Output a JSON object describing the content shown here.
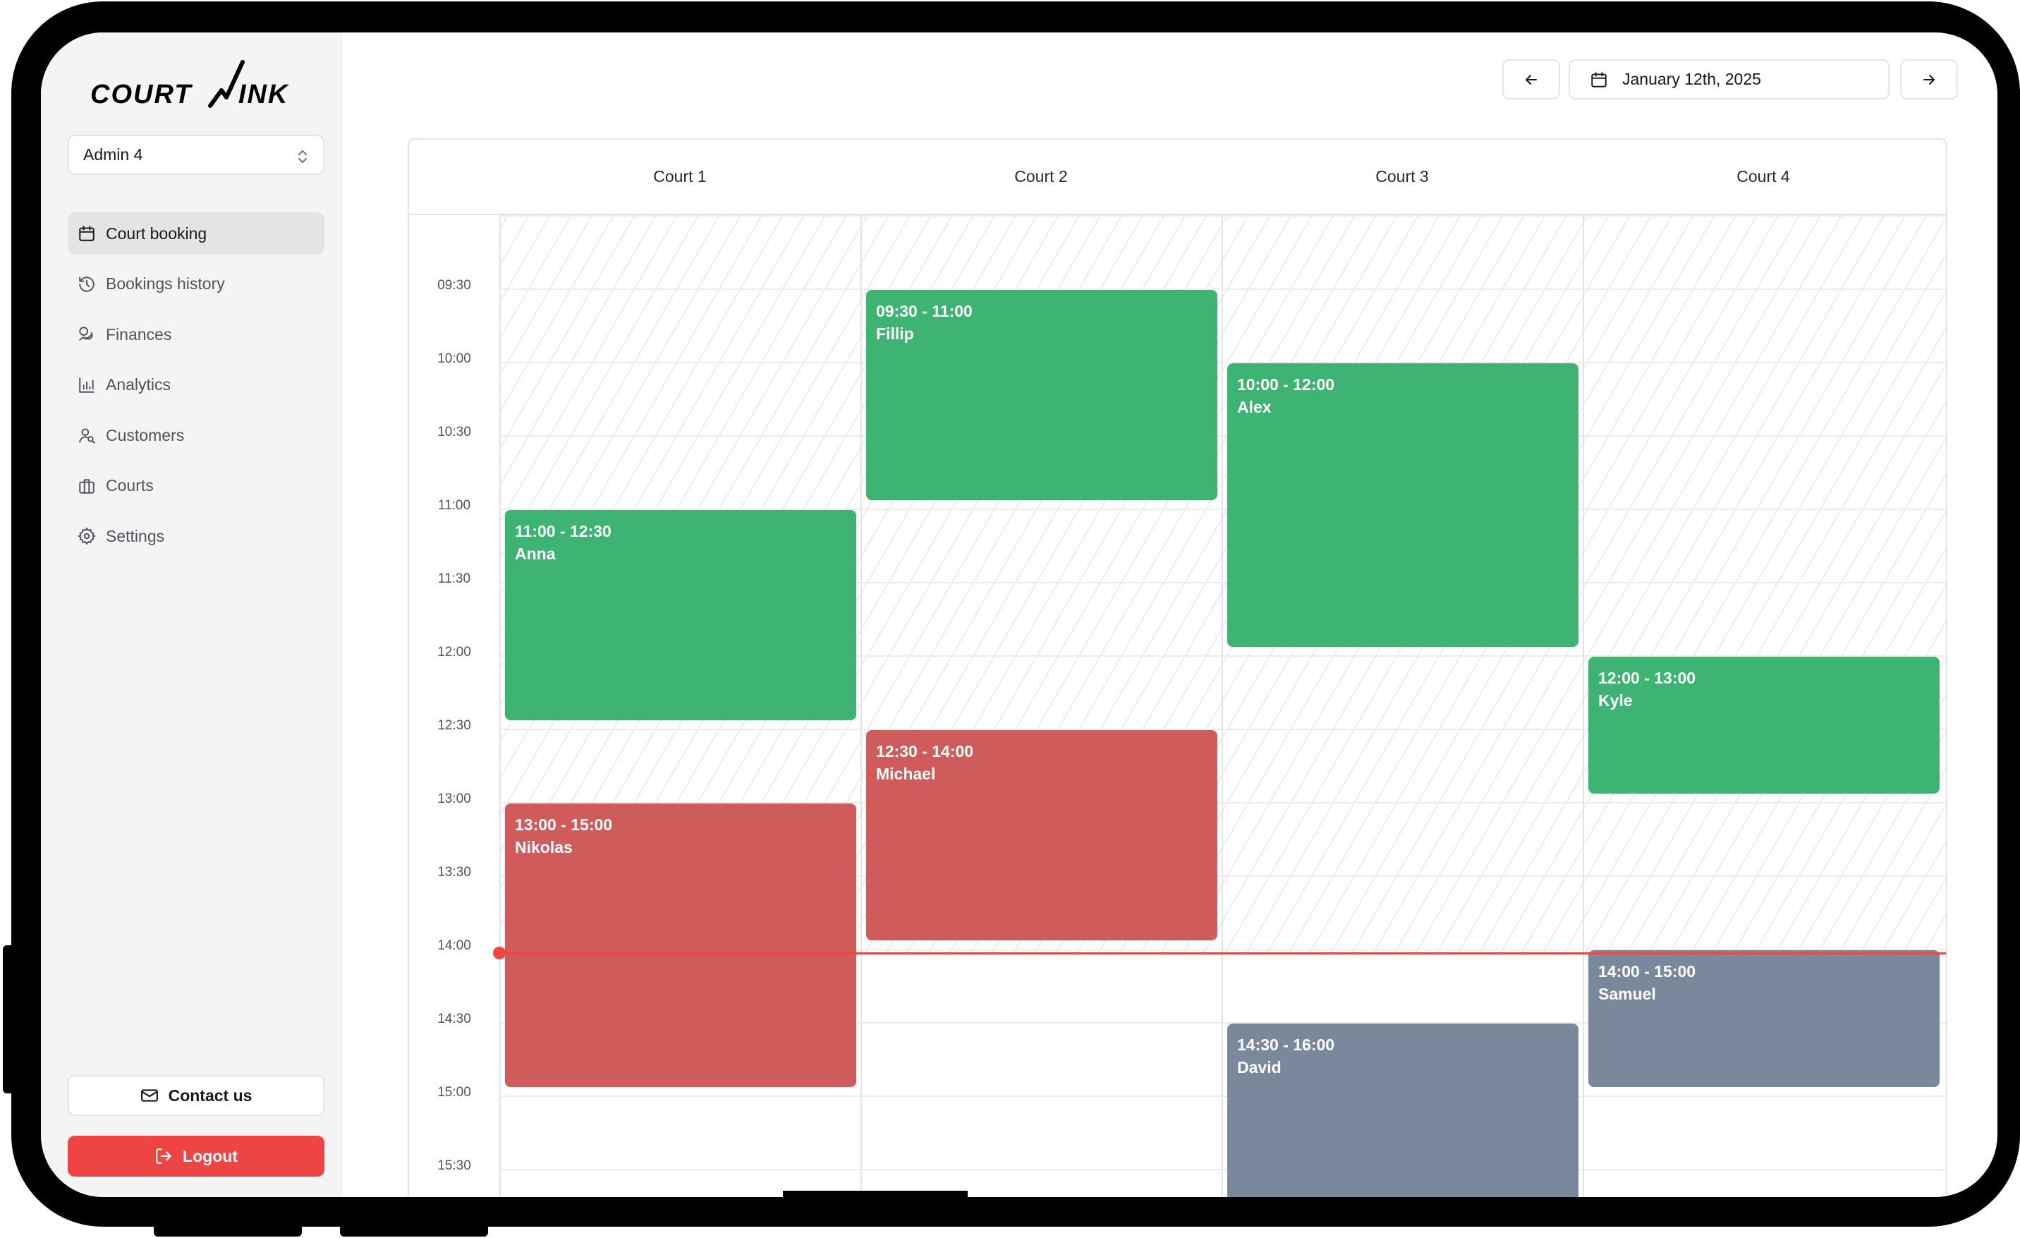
{
  "app": {
    "brand": "COURTLINK",
    "account": "Admin 4"
  },
  "sidebar": {
    "items": [
      {
        "label": "Court booking",
        "icon": "calendar-icon",
        "active": true
      },
      {
        "label": "Bookings history",
        "icon": "history-icon",
        "active": false
      },
      {
        "label": "Finances",
        "icon": "coins-icon",
        "active": false
      },
      {
        "label": "Analytics",
        "icon": "bar-chart-icon",
        "active": false
      },
      {
        "label": "Customers",
        "icon": "user-search-icon",
        "active": false
      },
      {
        "label": "Courts",
        "icon": "briefcase-icon",
        "active": false
      },
      {
        "label": "Settings",
        "icon": "gear-icon",
        "active": false
      }
    ],
    "contact_label": "Contact us",
    "logout_label": "Logout"
  },
  "toolbar": {
    "date": "January 12th, 2025"
  },
  "calendar": {
    "courts": [
      "Court 1",
      "Court 2",
      "Court 3",
      "Court 4"
    ],
    "times": [
      "09:30",
      "10:00",
      "10:30",
      "11:00",
      "11:30",
      "12:00",
      "12:30",
      "13:00",
      "13:30",
      "14:00",
      "14:30",
      "15:00",
      "15:30"
    ],
    "current_time": "14:00",
    "bookings": [
      {
        "court": 1,
        "time": "11:00 - 12:30",
        "name": "Anna",
        "status": "confirmed"
      },
      {
        "court": 1,
        "time": "13:00 - 15:00",
        "name": "Nikolas",
        "status": "unpaid"
      },
      {
        "court": 2,
        "time": "09:30 - 11:00",
        "name": "Fillip",
        "status": "confirmed"
      },
      {
        "court": 2,
        "time": "12:30 - 14:00",
        "name": "Michael",
        "status": "unpaid"
      },
      {
        "court": 3,
        "time": "10:00 - 12:00",
        "name": "Alex",
        "status": "confirmed"
      },
      {
        "court": 3,
        "time": "14:30 - 16:00",
        "name": "David",
        "status": "upcoming"
      },
      {
        "court": 4,
        "time": "12:00 - 13:00",
        "name": "Kyle",
        "status": "confirmed"
      },
      {
        "court": 4,
        "time": "14:00 - 15:00",
        "name": "Samuel",
        "status": "upcoming"
      }
    ]
  },
  "colors": {
    "confirmed": "#3db472",
    "unpaid": "#cf5b5b",
    "upcoming": "#7a889c",
    "now_line": "#ef4444",
    "logout": "#ef4444"
  }
}
